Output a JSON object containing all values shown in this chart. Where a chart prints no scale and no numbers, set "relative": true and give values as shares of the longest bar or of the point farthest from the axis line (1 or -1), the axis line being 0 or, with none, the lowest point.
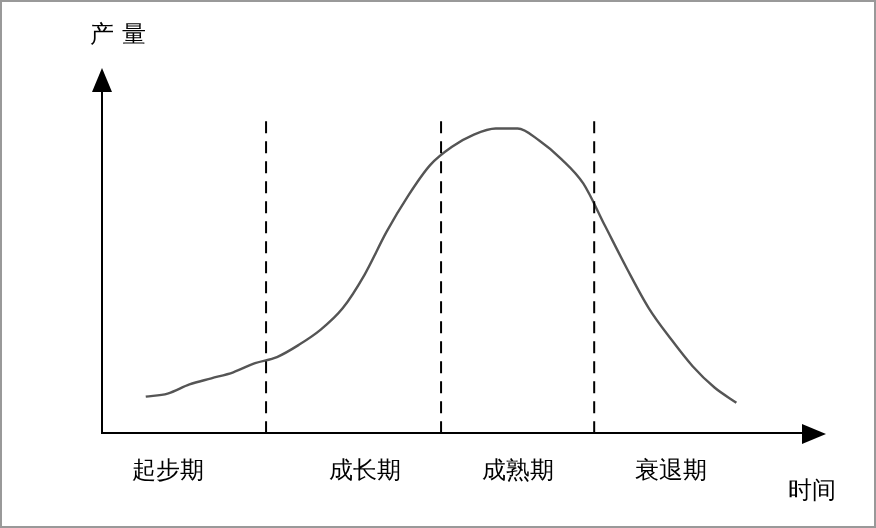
{
  "chart_data": {
    "type": "line",
    "relative": true,
    "xlabel": "时间",
    "ylabel": "产量",
    "categories": [
      null,
      null,
      null,
      "起步期",
      null,
      null,
      null,
      null,
      null,
      null,
      null,
      null,
      "成长期",
      null,
      null,
      null,
      null,
      null,
      null,
      "成熟期",
      null,
      null,
      null,
      null,
      null,
      null,
      "衰退期",
      null,
      null,
      null,
      null,
      null,
      null
    ],
    "values": [
      null,
      null,
      0.12,
      0.13,
      0.16,
      0.18,
      0.2,
      0.23,
      0.25,
      0.29,
      0.34,
      0.41,
      0.52,
      0.66,
      0.78,
      0.88,
      0.94,
      0.98,
      1,
      1,
      0.96,
      0.9,
      0.82,
      0.68,
      0.54,
      0.41,
      0.31,
      0.22,
      0.15,
      0.1,
      null,
      null,
      null
    ],
    "color": "#555555",
    "grid": false,
    "legend": false,
    "marker": "none",
    "line_style": "solid"
  }
}
